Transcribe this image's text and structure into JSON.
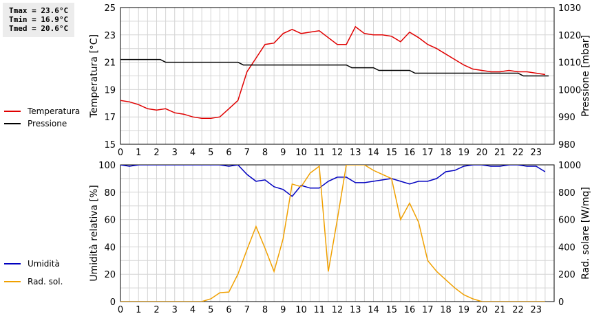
{
  "stats": {
    "tmax": "Tmax = 23.6°C",
    "tmin": "Tmin = 16.9°C",
    "tmed": "Tmed = 20.6°C"
  },
  "legend_top": [
    {
      "label": "Temperatura",
      "color": "#e00000"
    },
    {
      "label": "Pressione",
      "color": "#000000"
    }
  ],
  "legend_bottom": [
    {
      "label": "Umidità",
      "color": "#0000c0"
    },
    {
      "label": "Rad. sol.",
      "color": "#f0a000"
    }
  ],
  "chart_data": [
    {
      "type": "line",
      "ylabel": "Temperatura [°C]",
      "y2label": "Pressione [mbar]",
      "xlim": [
        0,
        24
      ],
      "ylim": [
        15,
        25
      ],
      "y2lim": [
        980,
        1030
      ],
      "x_ticks": [
        "0",
        "1",
        "2",
        "3",
        "4",
        "5",
        "6",
        "7",
        "8",
        "9",
        "10",
        "11",
        "12",
        "13",
        "14",
        "15",
        "16",
        "17",
        "18",
        "19",
        "20",
        "21",
        "22",
        "23"
      ],
      "y_ticks": [
        "15",
        "17",
        "19",
        "21",
        "23",
        "25"
      ],
      "y2_ticks": [
        "980",
        "990",
        "1000",
        "1010",
        "1020",
        "1030"
      ],
      "grid": true,
      "series": [
        {
          "name": "Temperatura",
          "axis": "left",
          "color": "#e00000",
          "x": [
            0,
            0.5,
            1,
            1.5,
            2,
            2.5,
            3,
            3.5,
            4,
            4.5,
            5,
            5.5,
            6,
            6.5,
            7,
            7.5,
            8,
            8.5,
            9,
            9.5,
            10,
            10.5,
            11,
            11.5,
            12,
            12.5,
            13,
            13.5,
            14,
            14.5,
            15,
            15.5,
            16,
            16.5,
            17,
            17.5,
            18,
            18.5,
            19,
            19.5,
            20,
            20.5,
            21,
            21.5,
            22,
            22.5,
            23,
            23.5
          ],
          "values": [
            18.2,
            18.1,
            17.9,
            17.6,
            17.5,
            17.6,
            17.3,
            17.2,
            17.0,
            16.9,
            16.9,
            17.0,
            17.6,
            18.2,
            20.3,
            21.3,
            22.3,
            22.4,
            23.1,
            23.4,
            23.1,
            23.2,
            23.3,
            22.8,
            22.3,
            22.3,
            23.6,
            23.1,
            23.0,
            23.0,
            22.9,
            22.5,
            23.2,
            22.8,
            22.3,
            22.0,
            21.6,
            21.2,
            20.8,
            20.5,
            20.4,
            20.3,
            20.3,
            20.4,
            20.3,
            20.3,
            20.2,
            20.1
          ]
        },
        {
          "name": "Pressione",
          "axis": "right",
          "color": "#000000",
          "x": [
            0,
            2.2,
            2.5,
            6.5,
            6.8,
            12.5,
            12.8,
            14,
            14.3,
            16,
            16.3,
            22,
            22.3,
            23.7
          ],
          "values": [
            1011,
            1011,
            1010,
            1010,
            1009,
            1009,
            1008,
            1008,
            1007,
            1007,
            1006,
            1006,
            1005,
            1005
          ]
        }
      ]
    },
    {
      "type": "line",
      "ylabel": "Umidità relativa [%]",
      "y2label": "Rad. solare [W/mq]",
      "xlim": [
        0,
        24
      ],
      "ylim": [
        0,
        100
      ],
      "y2lim": [
        0,
        1000
      ],
      "x_ticks": [
        "0",
        "1",
        "2",
        "3",
        "4",
        "5",
        "6",
        "7",
        "8",
        "9",
        "10",
        "11",
        "12",
        "13",
        "14",
        "15",
        "16",
        "17",
        "18",
        "19",
        "20",
        "21",
        "22",
        "23"
      ],
      "y_ticks": [
        "0",
        "20",
        "40",
        "60",
        "80",
        "100"
      ],
      "y2_ticks": [
        "0",
        "200",
        "400",
        "600",
        "800",
        "1000"
      ],
      "grid": true,
      "series": [
        {
          "name": "Umidità",
          "axis": "left",
          "color": "#0000c0",
          "x": [
            0,
            0.5,
            1,
            1.5,
            2,
            2.5,
            3,
            3.5,
            4,
            4.5,
            5,
            5.5,
            6,
            6.5,
            7,
            7.5,
            8,
            8.5,
            9,
            9.5,
            10,
            10.5,
            11,
            11.5,
            12,
            12.5,
            13,
            13.5,
            14,
            14.5,
            15,
            15.5,
            16,
            16.5,
            17,
            17.5,
            18,
            18.5,
            19,
            19.5,
            20,
            20.5,
            21,
            21.5,
            22,
            22.5,
            23,
            23.5
          ],
          "values": [
            100,
            99,
            100,
            100,
            100,
            100,
            100,
            100,
            100,
            100,
            100,
            100,
            99,
            100,
            93,
            88,
            89,
            84,
            82,
            77,
            85,
            83,
            83,
            88,
            91,
            91,
            87,
            87,
            88,
            89,
            90,
            88,
            86,
            88,
            88,
            90,
            95,
            96,
            99,
            100,
            100,
            99,
            99,
            100,
            100,
            99,
            99,
            95
          ]
        },
        {
          "name": "Rad. sol.",
          "axis": "right",
          "color": "#f0a000",
          "x": [
            0,
            0.5,
            1,
            1.5,
            2,
            2.5,
            3,
            3.5,
            4,
            4.5,
            5,
            5.5,
            6,
            6.5,
            7,
            7.5,
            8,
            8.5,
            9,
            9.5,
            10,
            10.5,
            11,
            11.5,
            12,
            12.5,
            13,
            13.5,
            14,
            14.5,
            15,
            15.5,
            16,
            16.5,
            17,
            17.5,
            18,
            18.5,
            19,
            19.5,
            20,
            20.5,
            21,
            21.5,
            22,
            22.5,
            23,
            23.5
          ],
          "values": [
            0,
            0,
            0,
            0,
            0,
            0,
            0,
            0,
            0,
            0,
            20,
            65,
            70,
            200,
            380,
            550,
            390,
            220,
            460,
            860,
            840,
            940,
            990,
            220,
            600,
            1000,
            1000,
            1000,
            960,
            930,
            900,
            600,
            720,
            580,
            300,
            220,
            160,
            100,
            50,
            20,
            0,
            0,
            0,
            0,
            0,
            0,
            0,
            0
          ]
        }
      ]
    }
  ]
}
